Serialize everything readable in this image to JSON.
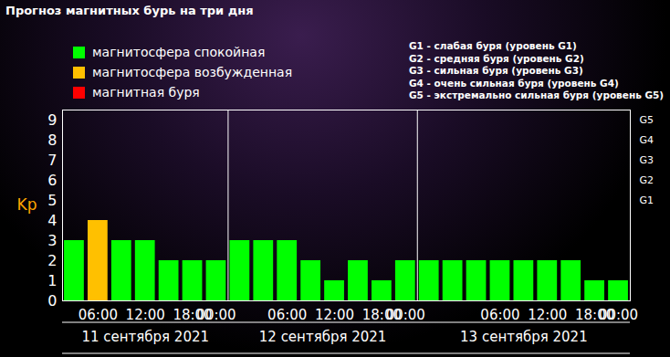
{
  "chart_data": {
    "type": "bar",
    "title": "Прогноз магнитных бурь на три дня",
    "y_label": "Kp",
    "categories": [
      null,
      "06:00",
      null,
      "12:00",
      null,
      "18:00",
      "00:00",
      null,
      null,
      "06:00",
      null,
      "12:00",
      null,
      "18:00",
      "00:00",
      null,
      null,
      null,
      "06:00",
      null,
      "12:00",
      null,
      "18:00",
      "00:00"
    ],
    "values": [
      3,
      4,
      3,
      3,
      2,
      2,
      2,
      3,
      3,
      3,
      2,
      1,
      2,
      1,
      2,
      2,
      2,
      2,
      2,
      2,
      2,
      2,
      1,
      1
    ],
    "colors": [
      "#00ff00",
      "#ffc000",
      "#00ff00",
      "#00ff00",
      "#00ff00",
      "#00ff00",
      "#00ff00",
      "#00ff00",
      "#00ff00",
      "#00ff00",
      "#00ff00",
      "#00ff00",
      "#00ff00",
      "#00ff00",
      "#00ff00",
      "#00ff00",
      "#00ff00",
      "#00ff00",
      "#00ff00",
      "#00ff00",
      "#00ff00",
      "#00ff00",
      "#00ff00",
      "#00ff00"
    ],
    "ylim": [
      0,
      9.5
    ],
    "yticks": [
      0,
      1,
      2,
      3,
      4,
      5,
      6,
      7,
      8,
      9
    ],
    "y2lim": [
      0,
      9.5
    ],
    "y2ticks": [
      {
        "value": 5,
        "label": "G1"
      },
      {
        "value": 6,
        "label": "G2"
      },
      {
        "value": 7,
        "label": "G3"
      },
      {
        "value": 8,
        "label": "G4"
      },
      {
        "value": 9,
        "label": "G5"
      }
    ],
    "legend_items": [
      {
        "name": "магнитосфера спокойная",
        "color": "#00ff00"
      },
      {
        "name": "магнитосфера возбужденная",
        "color": "#ffc000"
      },
      {
        "name": "магнитная буря",
        "color": "#ff0000"
      }
    ],
    "storm_levels": [
      "G1 - слабая буря (уровень G1)",
      "G2 - средняя буря (уровень G2)",
      "G3 - сильная буря (уровень G3)",
      "G4 - очень сильная буря (уровень G4)",
      "G5 - экстремально сильная буря (уровень G5)"
    ],
    "day_labels": [
      "11 сентября 2021",
      "12 сентября 2021",
      "13 сентября 2021"
    ],
    "grid": false
  }
}
